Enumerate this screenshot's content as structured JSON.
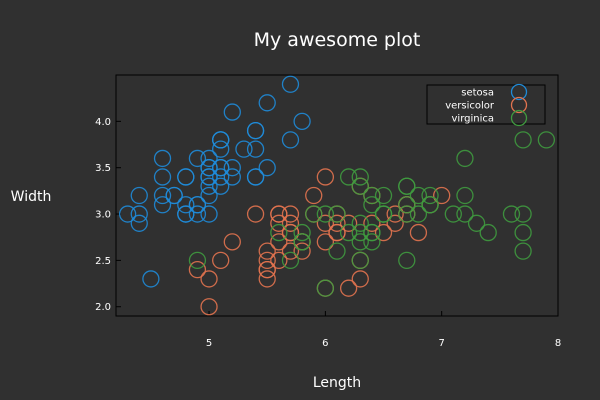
{
  "chart_data": {
    "type": "scatter",
    "title": "My awesome plot",
    "xlabel": "Length",
    "ylabel": "Width",
    "xlim": [
      4.2,
      8.0
    ],
    "ylim": [
      1.9,
      4.5
    ],
    "xticks": [
      "5",
      "6",
      "7",
      "8"
    ],
    "yticks": [
      "2.0",
      "2.5",
      "3.0",
      "3.5",
      "4.0"
    ],
    "grid": false,
    "legend_position": "top-right",
    "series": [
      {
        "name": "setosa",
        "color": "#1f8bd8",
        "points": [
          [
            5.1,
            3.5
          ],
          [
            4.9,
            3.0
          ],
          [
            4.7,
            3.2
          ],
          [
            4.6,
            3.1
          ],
          [
            5.0,
            3.6
          ],
          [
            5.4,
            3.9
          ],
          [
            4.6,
            3.4
          ],
          [
            5.0,
            3.4
          ],
          [
            4.4,
            2.9
          ],
          [
            4.9,
            3.1
          ],
          [
            5.4,
            3.7
          ],
          [
            4.8,
            3.4
          ],
          [
            4.8,
            3.0
          ],
          [
            4.3,
            3.0
          ],
          [
            5.8,
            4.0
          ],
          [
            5.7,
            4.4
          ],
          [
            5.4,
            3.9
          ],
          [
            5.1,
            3.5
          ],
          [
            5.7,
            3.8
          ],
          [
            5.1,
            3.8
          ],
          [
            5.4,
            3.4
          ],
          [
            5.1,
            3.7
          ],
          [
            4.6,
            3.6
          ],
          [
            5.1,
            3.3
          ],
          [
            4.8,
            3.4
          ],
          [
            5.0,
            3.0
          ],
          [
            5.0,
            3.4
          ],
          [
            5.2,
            3.5
          ],
          [
            5.2,
            3.4
          ],
          [
            4.7,
            3.2
          ],
          [
            4.8,
            3.1
          ],
          [
            5.4,
            3.4
          ],
          [
            5.2,
            4.1
          ],
          [
            5.5,
            4.2
          ],
          [
            4.9,
            3.1
          ],
          [
            5.0,
            3.2
          ],
          [
            5.5,
            3.5
          ],
          [
            4.9,
            3.6
          ],
          [
            4.4,
            3.0
          ],
          [
            5.1,
            3.4
          ],
          [
            5.0,
            3.5
          ],
          [
            4.5,
            2.3
          ],
          [
            4.4,
            3.2
          ],
          [
            5.0,
            3.5
          ],
          [
            5.1,
            3.8
          ],
          [
            4.8,
            3.0
          ],
          [
            5.1,
            3.8
          ],
          [
            4.6,
            3.2
          ],
          [
            5.3,
            3.7
          ],
          [
            5.0,
            3.3
          ]
        ]
      },
      {
        "name": "versicolor",
        "color": "#e2734f",
        "points": [
          [
            7.0,
            3.2
          ],
          [
            6.4,
            3.2
          ],
          [
            6.9,
            3.1
          ],
          [
            5.5,
            2.3
          ],
          [
            6.5,
            2.8
          ],
          [
            5.7,
            2.8
          ],
          [
            6.3,
            3.3
          ],
          [
            4.9,
            2.4
          ],
          [
            6.6,
            2.9
          ],
          [
            5.2,
            2.7
          ],
          [
            5.0,
            2.0
          ],
          [
            5.9,
            3.0
          ],
          [
            6.0,
            2.2
          ],
          [
            6.1,
            2.9
          ],
          [
            5.6,
            2.9
          ],
          [
            6.7,
            3.1
          ],
          [
            5.6,
            3.0
          ],
          [
            5.8,
            2.7
          ],
          [
            6.2,
            2.2
          ],
          [
            5.6,
            2.5
          ],
          [
            5.9,
            3.2
          ],
          [
            6.1,
            2.8
          ],
          [
            6.3,
            2.5
          ],
          [
            6.1,
            2.8
          ],
          [
            6.4,
            2.9
          ],
          [
            6.6,
            3.0
          ],
          [
            6.8,
            2.8
          ],
          [
            6.7,
            3.0
          ],
          [
            6.0,
            2.9
          ],
          [
            5.7,
            2.6
          ],
          [
            5.5,
            2.4
          ],
          [
            5.5,
            2.4
          ],
          [
            5.8,
            2.7
          ],
          [
            6.0,
            2.7
          ],
          [
            5.4,
            3.0
          ],
          [
            6.0,
            3.4
          ],
          [
            6.7,
            3.1
          ],
          [
            6.3,
            2.3
          ],
          [
            5.6,
            3.0
          ],
          [
            5.5,
            2.5
          ],
          [
            5.5,
            2.6
          ],
          [
            6.1,
            3.0
          ],
          [
            5.8,
            2.6
          ],
          [
            5.0,
            2.3
          ],
          [
            5.6,
            2.7
          ],
          [
            5.7,
            3.0
          ],
          [
            5.7,
            2.9
          ],
          [
            6.2,
            2.9
          ],
          [
            5.1,
            2.5
          ],
          [
            5.7,
            2.8
          ]
        ]
      },
      {
        "name": "virginica",
        "color": "#3f9a3f",
        "points": [
          [
            6.3,
            3.3
          ],
          [
            5.8,
            2.7
          ],
          [
            7.1,
            3.0
          ],
          [
            6.3,
            2.9
          ],
          [
            6.5,
            3.0
          ],
          [
            7.6,
            3.0
          ],
          [
            4.9,
            2.5
          ],
          [
            7.3,
            2.9
          ],
          [
            6.7,
            2.5
          ],
          [
            7.2,
            3.6
          ],
          [
            6.5,
            3.2
          ],
          [
            6.4,
            2.7
          ],
          [
            6.8,
            3.0
          ],
          [
            5.7,
            2.5
          ],
          [
            5.8,
            2.8
          ],
          [
            6.4,
            3.2
          ],
          [
            6.5,
            3.0
          ],
          [
            7.7,
            3.8
          ],
          [
            7.7,
            2.6
          ],
          [
            6.0,
            2.2
          ],
          [
            6.9,
            3.2
          ],
          [
            5.6,
            2.8
          ],
          [
            7.7,
            2.8
          ],
          [
            6.3,
            2.7
          ],
          [
            6.7,
            3.3
          ],
          [
            7.2,
            3.2
          ],
          [
            6.2,
            2.8
          ],
          [
            6.1,
            3.0
          ],
          [
            6.4,
            2.8
          ],
          [
            7.2,
            3.0
          ],
          [
            7.4,
            2.8
          ],
          [
            7.9,
            3.8
          ],
          [
            6.4,
            2.8
          ],
          [
            6.3,
            2.8
          ],
          [
            6.1,
            2.6
          ],
          [
            7.7,
            3.0
          ],
          [
            6.3,
            3.4
          ],
          [
            6.4,
            3.1
          ],
          [
            6.0,
            3.0
          ],
          [
            6.9,
            3.1
          ],
          [
            6.7,
            3.1
          ],
          [
            6.9,
            3.1
          ],
          [
            5.8,
            2.7
          ],
          [
            6.8,
            3.2
          ],
          [
            6.7,
            3.3
          ],
          [
            6.7,
            3.0
          ],
          [
            6.3,
            2.5
          ],
          [
            6.5,
            3.0
          ],
          [
            6.2,
            3.4
          ],
          [
            5.9,
            3.0
          ]
        ]
      }
    ]
  }
}
